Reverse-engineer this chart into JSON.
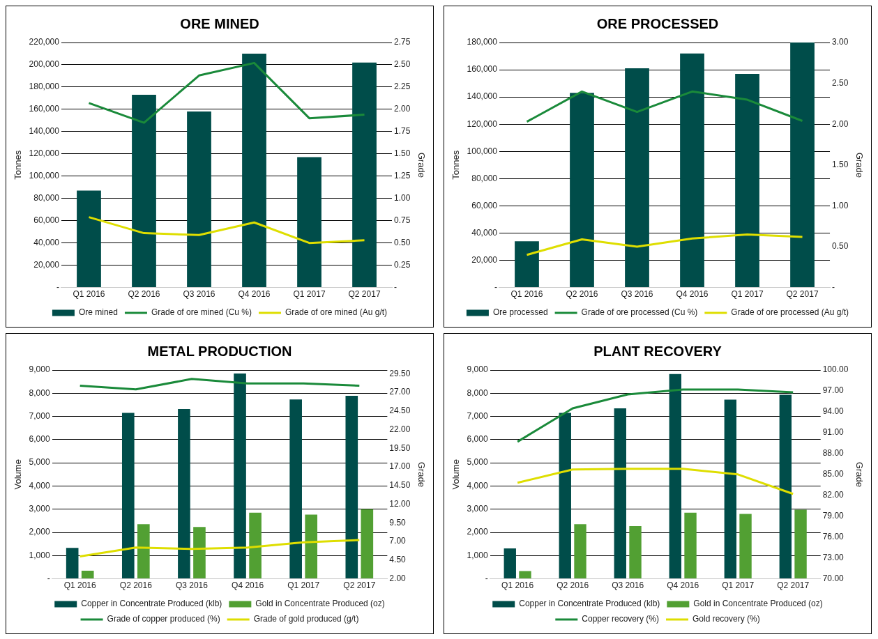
{
  "chart_data": [
    {
      "type": "bar",
      "title": "ORE MINED",
      "categories": [
        "Q1 2016",
        "Q2 2016",
        "Q3 2016",
        "Q4 2016",
        "Q1 2017",
        "Q2 2017"
      ],
      "ylabel": "Tonnes",
      "y2label": "Grade",
      "ylim": [
        0,
        220000
      ],
      "yticks": [
        {
          "value": 0,
          "label": "-"
        },
        {
          "value": 20000,
          "label": "20,000"
        },
        {
          "value": 40000,
          "label": "40,000"
        },
        {
          "value": 60000,
          "label": "60,000"
        },
        {
          "value": 80000,
          "label": "80,000"
        },
        {
          "value": 100000,
          "label": "100,000"
        },
        {
          "value": 120000,
          "label": "120,000"
        },
        {
          "value": 140000,
          "label": "140,000"
        },
        {
          "value": 160000,
          "label": "160,000"
        },
        {
          "value": 180000,
          "label": "180,000"
        },
        {
          "value": 200000,
          "label": "200,000"
        },
        {
          "value": 220000,
          "label": "220,000"
        }
      ],
      "y2lim": [
        0,
        2.75
      ],
      "y2ticks": [
        {
          "value": 0,
          "label": "-"
        },
        {
          "value": 0.25,
          "label": "0.25"
        },
        {
          "value": 0.5,
          "label": "0.50"
        },
        {
          "value": 0.75,
          "label": "0.75"
        },
        {
          "value": 1,
          "label": "1.00"
        },
        {
          "value": 1.25,
          "label": "1.25"
        },
        {
          "value": 1.5,
          "label": "1.50"
        },
        {
          "value": 1.75,
          "label": "1.75"
        },
        {
          "value": 2,
          "label": "2.00"
        },
        {
          "value": 2.25,
          "label": "2.25"
        },
        {
          "value": 2.5,
          "label": "2.50"
        },
        {
          "value": 2.75,
          "label": "2.75"
        }
      ],
      "grid": "y",
      "legend": "bottom",
      "marker": "none",
      "series": [
        {
          "name": "Ore mined",
          "color": "#004d4a",
          "values": [
            87000,
            173000,
            158000,
            210000,
            117000,
            202000
          ]
        },
        {
          "name": "Grade of ore mined (Cu %)",
          "type": "line",
          "axis": "y2",
          "color": "#1a8a3a",
          "values": [
            2.07,
            1.85,
            2.38,
            2.52,
            1.9,
            1.94
          ]
        },
        {
          "name": "Grade of ore mined (Au g/t)",
          "type": "line",
          "axis": "y2",
          "color": "#dede00",
          "values": [
            0.79,
            0.61,
            0.59,
            0.73,
            0.5,
            0.53
          ]
        }
      ]
    },
    {
      "type": "bar",
      "title": "ORE PROCESSED",
      "categories": [
        "Q1 2016",
        "Q2 2016",
        "Q3 2016",
        "Q4 2016",
        "Q1 2017",
        "Q2 2017"
      ],
      "ylabel": "Tonnes",
      "y2label": "Grade",
      "ylim": [
        0,
        180000
      ],
      "yticks": [
        {
          "value": 0,
          "label": "-"
        },
        {
          "value": 20000,
          "label": "20,000"
        },
        {
          "value": 40000,
          "label": "40,000"
        },
        {
          "value": 60000,
          "label": "60,000"
        },
        {
          "value": 80000,
          "label": "80,000"
        },
        {
          "value": 100000,
          "label": "100,000"
        },
        {
          "value": 120000,
          "label": "120,000"
        },
        {
          "value": 140000,
          "label": "140,000"
        },
        {
          "value": 160000,
          "label": "160,000"
        },
        {
          "value": 180000,
          "label": "180,000"
        }
      ],
      "y2lim": [
        0,
        3
      ],
      "y2ticks": [
        {
          "value": 0,
          "label": "-"
        },
        {
          "value": 0.5,
          "label": "0.50"
        },
        {
          "value": 1,
          "label": "1.00"
        },
        {
          "value": 1.5,
          "label": "1.50"
        },
        {
          "value": 2,
          "label": "2.00"
        },
        {
          "value": 2.5,
          "label": "2.50"
        },
        {
          "value": 3,
          "label": "3.00"
        }
      ],
      "grid": "y",
      "legend": "bottom",
      "marker": "none",
      "series": [
        {
          "name": "Ore processed",
          "color": "#004d4a",
          "values": [
            34000,
            143000,
            161000,
            172000,
            157000,
            180000
          ]
        },
        {
          "name": "Grade of ore processed (Cu %)",
          "type": "line",
          "axis": "y2",
          "color": "#1a8a3a",
          "values": [
            2.03,
            2.4,
            2.15,
            2.4,
            2.3,
            2.04
          ]
        },
        {
          "name": "Grade of ore processed (Au g/t)",
          "type": "line",
          "axis": "y2",
          "color": "#dede00",
          "values": [
            0.4,
            0.59,
            0.5,
            0.6,
            0.65,
            0.62
          ]
        }
      ]
    },
    {
      "type": "bar",
      "title": "METAL PRODUCTION",
      "categories": [
        "Q1 2016",
        "Q2 2016",
        "Q3 2016",
        "Q4 2016",
        "Q1 2017",
        "Q2 2017"
      ],
      "ylabel": "Volume",
      "y2label": "Grade",
      "ylim": [
        0,
        9000
      ],
      "yticks": [
        {
          "value": 0,
          "label": "-"
        },
        {
          "value": 1000,
          "label": "1,000"
        },
        {
          "value": 2000,
          "label": "2,000"
        },
        {
          "value": 3000,
          "label": "3,000"
        },
        {
          "value": 4000,
          "label": "4,000"
        },
        {
          "value": 5000,
          "label": "5,000"
        },
        {
          "value": 6000,
          "label": "6,000"
        },
        {
          "value": 7000,
          "label": "7,000"
        },
        {
          "value": 8000,
          "label": "8,000"
        },
        {
          "value": 9000,
          "label": "9,000"
        }
      ],
      "y2lim": [
        2,
        30
      ],
      "y2ticks": [
        {
          "value": 2,
          "label": "2.00"
        },
        {
          "value": 4.5,
          "label": "4.50"
        },
        {
          "value": 7,
          "label": "7.00"
        },
        {
          "value": 9.5,
          "label": "9.50"
        },
        {
          "value": 12,
          "label": "12.00"
        },
        {
          "value": 14.5,
          "label": "14.50"
        },
        {
          "value": 17,
          "label": "17.00"
        },
        {
          "value": 19.5,
          "label": "19.50"
        },
        {
          "value": 22,
          "label": "22.00"
        },
        {
          "value": 24.5,
          "label": "24.50"
        },
        {
          "value": 27,
          "label": "27.00"
        },
        {
          "value": 29.5,
          "label": "29.50"
        }
      ],
      "grid": "y",
      "legend": "bottom",
      "marker": "none",
      "series": [
        {
          "name": "Copper in Concentrate Produced (klb)",
          "color": "#004d4a",
          "values": [
            1330,
            7150,
            7320,
            8850,
            7730,
            7890
          ]
        },
        {
          "name": "Gold in Concentrate Produced (oz)",
          "color": "#52a033",
          "values": [
            350,
            2350,
            2230,
            2850,
            2770,
            3000
          ]
        },
        {
          "name": "Grade of copper produced (%)",
          "type": "line",
          "axis": "y2",
          "color": "#1a8a3a",
          "values": [
            27.9,
            27.4,
            28.8,
            28.2,
            28.2,
            27.9
          ]
        },
        {
          "name": "Grade of gold produced (g/t)",
          "type": "line",
          "axis": "y2",
          "color": "#dede00",
          "values": [
            5.0,
            6.2,
            6.0,
            6.2,
            6.9,
            7.2
          ]
        }
      ]
    },
    {
      "type": "bar",
      "title": "PLANT RECOVERY",
      "categories": [
        "Q1 2016",
        "Q2 2016",
        "Q3 2016",
        "Q4 2016",
        "Q1 2017",
        "Q2 2017"
      ],
      "ylabel": "Volume",
      "y2label": "Grade",
      "ylim": [
        0,
        9000
      ],
      "yticks": [
        {
          "value": 0,
          "label": "-"
        },
        {
          "value": 1000,
          "label": "1,000"
        },
        {
          "value": 2000,
          "label": "2,000"
        },
        {
          "value": 3000,
          "label": "3,000"
        },
        {
          "value": 4000,
          "label": "4,000"
        },
        {
          "value": 5000,
          "label": "5,000"
        },
        {
          "value": 6000,
          "label": "6,000"
        },
        {
          "value": 7000,
          "label": "7,000"
        },
        {
          "value": 8000,
          "label": "8,000"
        },
        {
          "value": 9000,
          "label": "9,000"
        }
      ],
      "y2lim": [
        70,
        100
      ],
      "y2ticks": [
        {
          "value": 70,
          "label": "70.00"
        },
        {
          "value": 73,
          "label": "73.00"
        },
        {
          "value": 76,
          "label": "76.00"
        },
        {
          "value": 79,
          "label": "79.00"
        },
        {
          "value": 82,
          "label": "82.00"
        },
        {
          "value": 85,
          "label": "85.00"
        },
        {
          "value": 88,
          "label": "88.00"
        },
        {
          "value": 91,
          "label": "91.00"
        },
        {
          "value": 94,
          "label": "94.00"
        },
        {
          "value": 97,
          "label": "97.00"
        },
        {
          "value": 100,
          "label": "100.00"
        }
      ],
      "grid": "y",
      "legend": "bottom",
      "marker": "none",
      "series": [
        {
          "name": "Copper in Concentrate Produced (klb)",
          "color": "#004d4a",
          "values": [
            1310,
            7150,
            7350,
            8830,
            7720,
            7930
          ]
        },
        {
          "name": "Gold in Concentrate Produced (oz)",
          "color": "#52a033",
          "values": [
            330,
            2350,
            2270,
            2850,
            2800,
            2980
          ]
        },
        {
          "name": "Copper recovery (%)",
          "type": "line",
          "axis": "y2",
          "color": "#1a8a3a",
          "values": [
            89.7,
            94.5,
            96.5,
            97.2,
            97.2,
            96.8
          ]
        },
        {
          "name": "Gold recovery (%)",
          "type": "line",
          "axis": "y2",
          "color": "#dede00",
          "values": [
            83.8,
            85.7,
            85.8,
            85.8,
            85.0,
            82.2
          ]
        }
      ]
    }
  ]
}
